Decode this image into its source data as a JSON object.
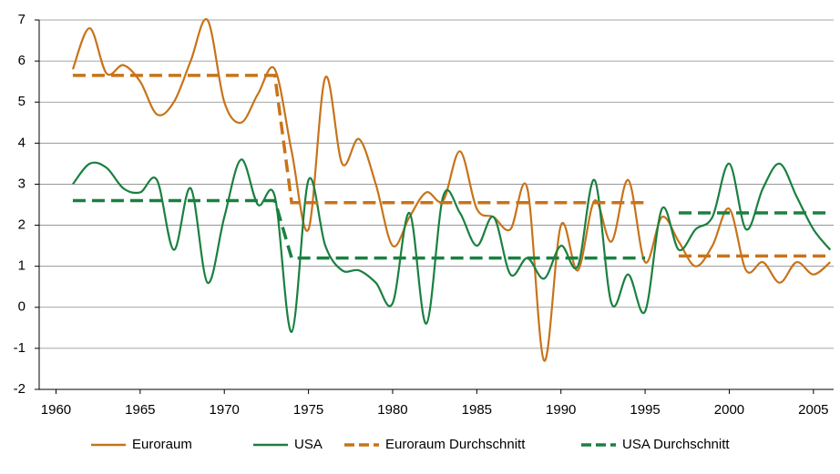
{
  "chart_data": {
    "type": "line",
    "x": [
      1961,
      1962,
      1963,
      1964,
      1965,
      1966,
      1967,
      1968,
      1969,
      1970,
      1971,
      1972,
      1973,
      1974,
      1975,
      1976,
      1977,
      1978,
      1979,
      1980,
      1981,
      1982,
      1983,
      1984,
      1985,
      1986,
      1987,
      1988,
      1989,
      1990,
      1991,
      1992,
      1993,
      1994,
      1995,
      1996,
      1997,
      1998,
      1999,
      2000,
      2001,
      2002,
      2003,
      2004,
      2005,
      2006
    ],
    "series": [
      {
        "name": "Euroraum",
        "color": "#c8731a",
        "dash": false,
        "values": [
          5.8,
          6.8,
          5.7,
          5.9,
          5.5,
          4.7,
          5.0,
          6.0,
          7.0,
          5.0,
          4.5,
          5.2,
          5.8,
          3.8,
          1.9,
          5.6,
          3.5,
          4.1,
          3.0,
          1.5,
          2.2,
          2.8,
          2.6,
          3.8,
          2.4,
          2.2,
          1.9,
          2.9,
          -1.3,
          2.0,
          0.9,
          2.6,
          1.6,
          3.1,
          1.1,
          2.2,
          1.6,
          1.0,
          1.5,
          2.4,
          0.9,
          1.1,
          0.6,
          1.1,
          0.8,
          1.1
        ]
      },
      {
        "name": "USA",
        "color": "#1a8040",
        "dash": false,
        "values": [
          3.0,
          3.5,
          3.4,
          2.9,
          2.8,
          3.1,
          1.4,
          2.9,
          0.6,
          2.2,
          3.6,
          2.5,
          2.7,
          -0.6,
          3.1,
          1.5,
          0.9,
          0.9,
          0.6,
          0.1,
          2.3,
          -0.4,
          2.7,
          2.3,
          1.5,
          2.2,
          0.8,
          1.2,
          0.7,
          1.5,
          1.0,
          3.1,
          0.1,
          0.8,
          -0.1,
          2.4,
          1.4,
          1.9,
          2.2,
          3.5,
          1.9,
          2.9,
          3.5,
          2.7,
          1.9,
          1.4
        ]
      },
      {
        "name": "Euroraum Durchschnitt",
        "color": "#c8731a",
        "dash": true,
        "values": [
          5.65,
          5.65,
          5.65,
          5.65,
          5.65,
          5.65,
          5.65,
          5.65,
          5.65,
          5.65,
          5.65,
          5.65,
          5.65,
          2.55,
          2.55,
          2.55,
          2.55,
          2.55,
          2.55,
          2.55,
          2.55,
          2.55,
          2.55,
          2.55,
          2.55,
          2.55,
          2.55,
          2.55,
          2.55,
          2.55,
          2.55,
          2.55,
          2.55,
          2.55,
          2.55,
          null,
          1.25,
          1.25,
          1.25,
          1.25,
          1.25,
          1.25,
          1.25,
          1.25,
          1.25,
          1.25
        ]
      },
      {
        "name": "USA Durchschnitt",
        "color": "#1a8040",
        "dash": true,
        "values": [
          2.6,
          2.6,
          2.6,
          2.6,
          2.6,
          2.6,
          2.6,
          2.6,
          2.6,
          2.6,
          2.6,
          2.6,
          2.6,
          1.2,
          1.2,
          1.2,
          1.2,
          1.2,
          1.2,
          1.2,
          1.2,
          1.2,
          1.2,
          1.2,
          1.2,
          1.2,
          1.2,
          1.2,
          1.2,
          1.2,
          1.2,
          1.2,
          1.2,
          1.2,
          1.2,
          null,
          2.3,
          2.3,
          2.3,
          2.3,
          2.3,
          2.3,
          2.3,
          2.3,
          2.3,
          2.3
        ]
      }
    ],
    "xlim": [
      1959,
      2006.2
    ],
    "xticks": [
      1960,
      1965,
      1970,
      1975,
      1980,
      1985,
      1990,
      1995,
      2000,
      2005
    ],
    "ylim": [
      -2,
      7
    ],
    "yticks": [
      -2,
      -1,
      0,
      1,
      2,
      3,
      4,
      5,
      6,
      7
    ],
    "grid": true,
    "legend": "bottom"
  }
}
